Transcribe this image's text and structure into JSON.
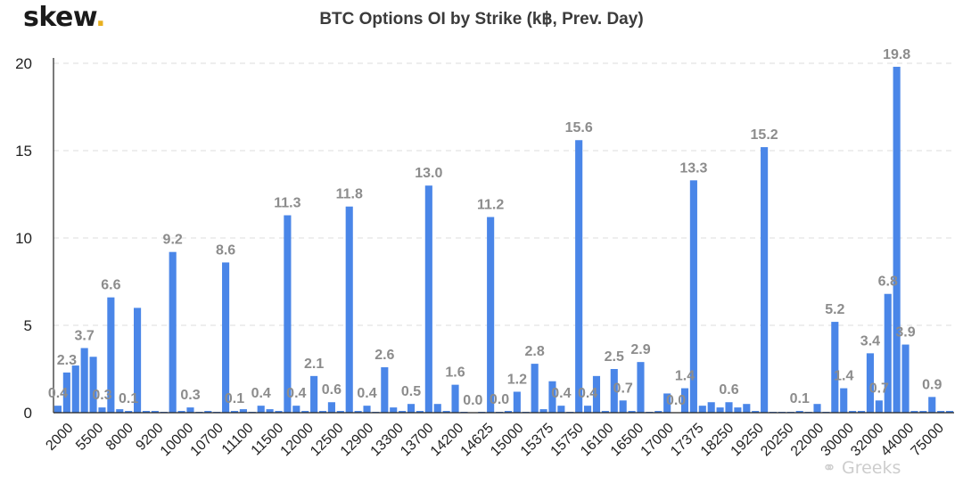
{
  "brand": {
    "name": "skew",
    "dot": "."
  },
  "chart_data": {
    "type": "bar",
    "title": "BTC Options OI by Strike (k฿, Prev. Day)",
    "xlabel": "",
    "ylabel": "",
    "ylim": [
      0,
      20
    ],
    "yticks": [
      0,
      5,
      10,
      15,
      20
    ],
    "grid": true,
    "legend": "none",
    "bar_color": "#4a86e8",
    "x_tick_labels": [
      "2000",
      "5500",
      "8000",
      "9200",
      "10000",
      "10700",
      "11100",
      "11500",
      "12000",
      "12500",
      "12900",
      "13300",
      "13700",
      "14200",
      "14625",
      "15000",
      "15375",
      "15750",
      "16100",
      "16500",
      "17000",
      "17375",
      "18250",
      "19250",
      "20250",
      "22000",
      "30000",
      "32000",
      "44000",
      "75000"
    ],
    "values": [
      0.4,
      2.3,
      2.7,
      3.7,
      3.2,
      0.3,
      6.6,
      0.2,
      0.1,
      6.0,
      0.1,
      0.1,
      0.05,
      9.2,
      0.1,
      0.3,
      0.05,
      0.1,
      0.05,
      8.6,
      0.1,
      0.2,
      0.05,
      0.4,
      0.2,
      0.1,
      11.3,
      0.4,
      0.1,
      2.1,
      0.1,
      0.6,
      0.1,
      11.8,
      0.1,
      0.4,
      0.05,
      2.6,
      0.3,
      0.1,
      0.5,
      0.1,
      13.0,
      0.5,
      0.1,
      1.6,
      0.05,
      0.0,
      0.05,
      11.2,
      0.05,
      0.1,
      1.2,
      0.05,
      2.8,
      0.2,
      1.8,
      0.4,
      0.05,
      15.6,
      0.4,
      2.1,
      0.1,
      2.5,
      0.7,
      0.1,
      2.9,
      0.05,
      0.1,
      1.1,
      0.0,
      1.4,
      13.3,
      0.4,
      0.6,
      0.3,
      0.6,
      0.3,
      0.5,
      0.1,
      15.2,
      0.05,
      0.05,
      0.05,
      0.1,
      0.05,
      0.5,
      0.05,
      5.2,
      1.4,
      0.1,
      0.1,
      3.4,
      0.7,
      6.8,
      19.8,
      3.9,
      0.1,
      0.1,
      0.9,
      0.1,
      0.1
    ],
    "data_labels": [
      {
        "index": 0,
        "text": "0.4"
      },
      {
        "index": 1,
        "text": "2.3"
      },
      {
        "index": 3,
        "text": "3.7"
      },
      {
        "index": 5,
        "text": "0.3"
      },
      {
        "index": 6,
        "text": "6.6"
      },
      {
        "index": 8,
        "text": "0.1"
      },
      {
        "index": 13,
        "text": "9.2"
      },
      {
        "index": 15,
        "text": "0.3"
      },
      {
        "index": 19,
        "text": "8.6"
      },
      {
        "index": 20,
        "text": "0.1"
      },
      {
        "index": 23,
        "text": "0.4"
      },
      {
        "index": 26,
        "text": "11.3"
      },
      {
        "index": 27,
        "text": "0.4"
      },
      {
        "index": 29,
        "text": "2.1"
      },
      {
        "index": 31,
        "text": "0.6"
      },
      {
        "index": 33,
        "text": "11.8"
      },
      {
        "index": 35,
        "text": "0.4"
      },
      {
        "index": 37,
        "text": "2.6"
      },
      {
        "index": 40,
        "text": "0.5"
      },
      {
        "index": 42,
        "text": "13.0"
      },
      {
        "index": 45,
        "text": "1.6"
      },
      {
        "index": 47,
        "text": "0.0"
      },
      {
        "index": 49,
        "text": "11.2"
      },
      {
        "index": 50,
        "text": "0.0"
      },
      {
        "index": 52,
        "text": "1.2"
      },
      {
        "index": 54,
        "text": "2.8"
      },
      {
        "index": 57,
        "text": "0.4"
      },
      {
        "index": 59,
        "text": "15.6"
      },
      {
        "index": 60,
        "text": "0.4"
      },
      {
        "index": 63,
        "text": "2.5"
      },
      {
        "index": 64,
        "text": "0.7"
      },
      {
        "index": 66,
        "text": "2.9"
      },
      {
        "index": 70,
        "text": "0.0"
      },
      {
        "index": 71,
        "text": "1.4"
      },
      {
        "index": 72,
        "text": "13.3"
      },
      {
        "index": 76,
        "text": "0.6"
      },
      {
        "index": 80,
        "text": "15.2"
      },
      {
        "index": 84,
        "text": "0.1"
      },
      {
        "index": 88,
        "text": "5.2"
      },
      {
        "index": 89,
        "text": "1.4"
      },
      {
        "index": 92,
        "text": "3.4"
      },
      {
        "index": 93,
        "text": "0.7"
      },
      {
        "index": 94,
        "text": "6.8"
      },
      {
        "index": 95,
        "text": "19.8"
      },
      {
        "index": 96,
        "text": "3.9"
      },
      {
        "index": 99,
        "text": "0.9"
      }
    ]
  },
  "watermark": {
    "text": "Greeks"
  }
}
